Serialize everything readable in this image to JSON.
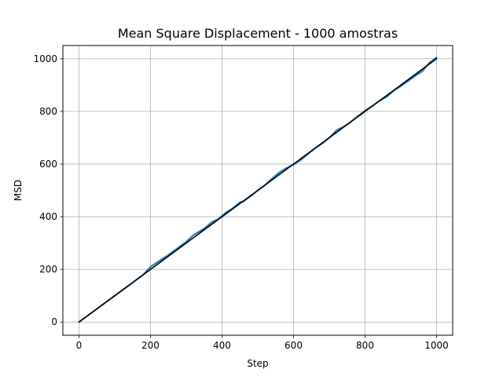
{
  "chart_data": {
    "type": "line",
    "title": "Mean Square Displacement - 1000 amostras",
    "xlabel": "Step",
    "ylabel": "MSD",
    "xlim": [
      -45,
      1045
    ],
    "ylim": [
      -50,
      1050
    ],
    "xticks": [
      0,
      200,
      400,
      600,
      800,
      1000
    ],
    "yticks": [
      0,
      200,
      400,
      600,
      800,
      1000
    ],
    "grid": true,
    "series": [
      {
        "color": "#1f77b4",
        "x": [
          0,
          50,
          100,
          150,
          180,
          200,
          220,
          250,
          280,
          300,
          320,
          350,
          370,
          390,
          410,
          430,
          450,
          460,
          480,
          500,
          520,
          540,
          560,
          580,
          600,
          620,
          640,
          660,
          680,
          700,
          720,
          740,
          760,
          780,
          800,
          820,
          840,
          860,
          880,
          900,
          920,
          940,
          960,
          980,
          1000
        ],
        "y": [
          0,
          50,
          100,
          150,
          180,
          210,
          228,
          255,
          285,
          305,
          330,
          355,
          378,
          392,
          415,
          432,
          455,
          458,
          478,
          500,
          520,
          545,
          568,
          585,
          598,
          615,
          638,
          660,
          678,
          700,
          728,
          742,
          760,
          782,
          803,
          820,
          840,
          855,
          878,
          896,
          915,
          935,
          952,
          985,
          1005
        ]
      },
      {
        "color": "#000000",
        "x": [
          0,
          1000
        ],
        "y": [
          0,
          1000
        ]
      }
    ]
  }
}
